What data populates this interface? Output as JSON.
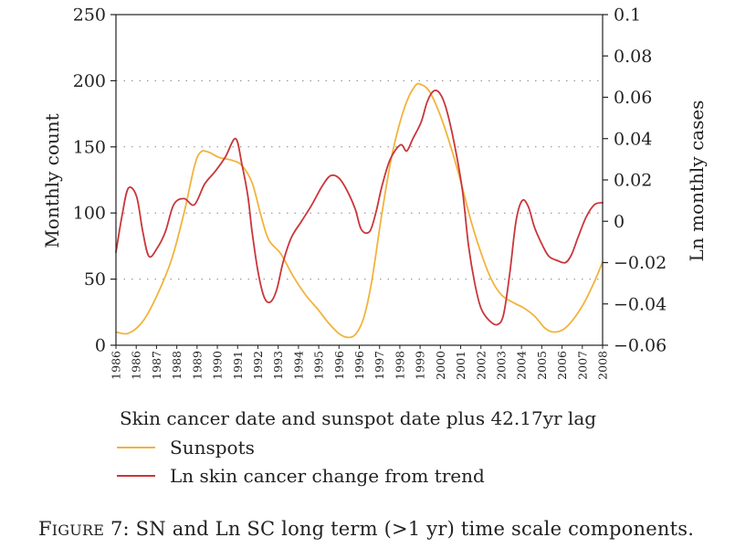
{
  "chart_data": {
    "type": "line",
    "xlabel": "Skin cancer date and sunspot date plus 42.17yr lag",
    "ylabel": "Monthly count",
    "y2label": "Ln monthly cases",
    "x_range": [
      1985.2,
      2008.8
    ],
    "ylim": [
      0,
      250
    ],
    "y2lim": [
      -0.06,
      0.1
    ],
    "yticks": [
      "0",
      "50",
      "100",
      "150",
      "200",
      "250"
    ],
    "y2ticks": [
      "−0.06",
      "−0.04",
      "−0.02",
      "0",
      "0.02",
      "0.04",
      "0.06",
      "0.08",
      "0.1"
    ],
    "xticks": [
      "1986",
      "1986",
      "1987",
      "1988",
      "1989",
      "1990",
      "1991",
      "1992",
      "1993",
      "1994",
      "1995",
      "1996",
      "1996",
      "1997",
      "1998",
      "1999",
      "2000",
      "2001",
      "2002",
      "2003",
      "2004",
      "2005",
      "2006",
      "2007",
      "2008"
    ],
    "grid": "horizontal dotted",
    "legend_position": "below",
    "series": [
      {
        "name": "Sunspots",
        "axis": "left",
        "color": "#f2b33d",
        "x": [
          1985.2,
          1985.8,
          1986.5,
          1987.2,
          1987.9,
          1988.5,
          1989.0,
          1989.3,
          1989.7,
          1990.2,
          1990.8,
          1991.3,
          1991.8,
          1992.2,
          1992.6,
          1993.2,
          1993.8,
          1994.4,
          1995.0,
          1995.5,
          1996.0,
          1996.4,
          1996.8,
          1997.2,
          1997.6,
          1998.1,
          1998.6,
          1999.2,
          1999.7,
          2000.0,
          2000.4,
          2000.9,
          2001.4,
          2001.9,
          2002.4,
          2002.9,
          2003.4,
          2003.9,
          2004.5,
          2005.0,
          2005.5,
          2006.0,
          2006.4,
          2006.9,
          2007.4,
          2007.9,
          2008.4,
          2008.8
        ],
        "values": [
          10,
          9,
          18,
          38,
          65,
          100,
          135,
          146,
          146,
          142,
          140,
          136,
          123,
          100,
          80,
          69,
          52,
          38,
          27,
          17,
          9,
          6,
          8,
          20,
          48,
          100,
          145,
          180,
          196,
          197,
          192,
          175,
          152,
          125,
          95,
          70,
          50,
          38,
          32,
          28,
          22,
          13,
          10,
          12,
          20,
          32,
          48,
          63
        ]
      },
      {
        "name": "Ln skin cancer change from trend",
        "axis": "right",
        "color": "#c8373a",
        "x": [
          1985.2,
          1985.5,
          1985.8,
          1986.2,
          1986.5,
          1986.8,
          1987.2,
          1987.6,
          1988.0,
          1988.5,
          1989.0,
          1989.5,
          1990.0,
          1990.5,
          1991.0,
          1991.3,
          1991.6,
          1991.8,
          1992.1,
          1992.4,
          1992.7,
          1993.0,
          1993.3,
          1993.7,
          1994.2,
          1994.7,
          1995.2,
          1995.6,
          1996.0,
          1996.4,
          1996.8,
          1997.1,
          1997.5,
          1997.8,
          1998.1,
          1998.5,
          1999.0,
          1999.3,
          1999.6,
          2000.0,
          2000.3,
          2000.6,
          2000.9,
          2001.2,
          2001.6,
          2002.0,
          2002.3,
          2002.6,
          2002.9,
          2003.3,
          2003.7,
          2004.0,
          2004.3,
          2004.6,
          2004.9,
          2005.2,
          2005.5,
          2005.9,
          2006.2,
          2006.6,
          2007.0,
          2007.3,
          2007.6,
          2008.0,
          2008.4,
          2008.8
        ],
        "values": [
          -0.015,
          0.003,
          0.016,
          0.012,
          -0.005,
          -0.017,
          -0.013,
          -0.005,
          0.008,
          0.011,
          0.008,
          0.018,
          0.024,
          0.031,
          0.04,
          0.028,
          0.012,
          -0.005,
          -0.025,
          -0.037,
          -0.039,
          -0.033,
          -0.02,
          -0.008,
          -0.0,
          0.008,
          0.017,
          0.022,
          0.021,
          0.015,
          0.006,
          -0.004,
          -0.005,
          0.004,
          0.017,
          0.03,
          0.037,
          0.034,
          0.04,
          0.048,
          0.058,
          0.063,
          0.062,
          0.055,
          0.038,
          0.015,
          -0.012,
          -0.03,
          -0.042,
          -0.048,
          -0.05,
          -0.045,
          -0.025,
          0.0,
          0.01,
          0.007,
          -0.003,
          -0.012,
          -0.017,
          -0.019,
          -0.02,
          -0.016,
          -0.008,
          0.002,
          0.008,
          0.009
        ]
      }
    ]
  },
  "caption": {
    "figure_label": "Figure 7",
    "text": ": SN and Ln SC long term (>1 yr) time scale components."
  }
}
